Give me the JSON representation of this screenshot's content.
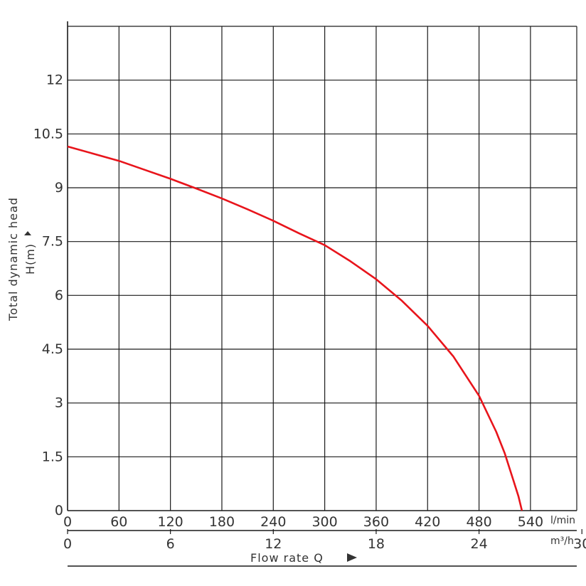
{
  "chart_data": {
    "type": "line",
    "xlabel": "Flow rate Q",
    "ylabel_line1": "Total dynamic head",
    "ylabel_line2": "H(m)",
    "x_unit_primary": "l/min",
    "x_unit_secondary": "m³/h",
    "xlim": [
      0,
      594
    ],
    "ylim": [
      0,
      13.5
    ],
    "grid": true,
    "x_ticks_primary": [
      0,
      60,
      120,
      180,
      240,
      300,
      360,
      420,
      480,
      540
    ],
    "x_ticks_secondary": [
      0,
      6,
      12,
      18,
      24,
      30
    ],
    "x_ticks_secondary_lpm": [
      0,
      120,
      240,
      360,
      480,
      600
    ],
    "y_ticks": [
      0,
      1.5,
      3,
      4.5,
      6,
      7.5,
      9,
      10.5,
      12
    ],
    "y_tick_labels": [
      "0",
      "1.5",
      "3",
      "4.5",
      "6",
      "7.5",
      "9",
      "10.5",
      "12"
    ],
    "series": [
      {
        "color": "#e8141b",
        "x": [
          0,
          30,
          60,
          90,
          120,
          150,
          180,
          210,
          240,
          270,
          300,
          330,
          360,
          390,
          420,
          450,
          480,
          500,
          510,
          520,
          526,
          530
        ],
        "y": [
          10.15,
          9.95,
          9.75,
          9.5,
          9.25,
          8.98,
          8.7,
          8.4,
          8.08,
          7.73,
          7.4,
          6.95,
          6.45,
          5.85,
          5.15,
          4.3,
          3.2,
          2.2,
          1.6,
          0.85,
          0.4,
          0
        ]
      }
    ]
  }
}
